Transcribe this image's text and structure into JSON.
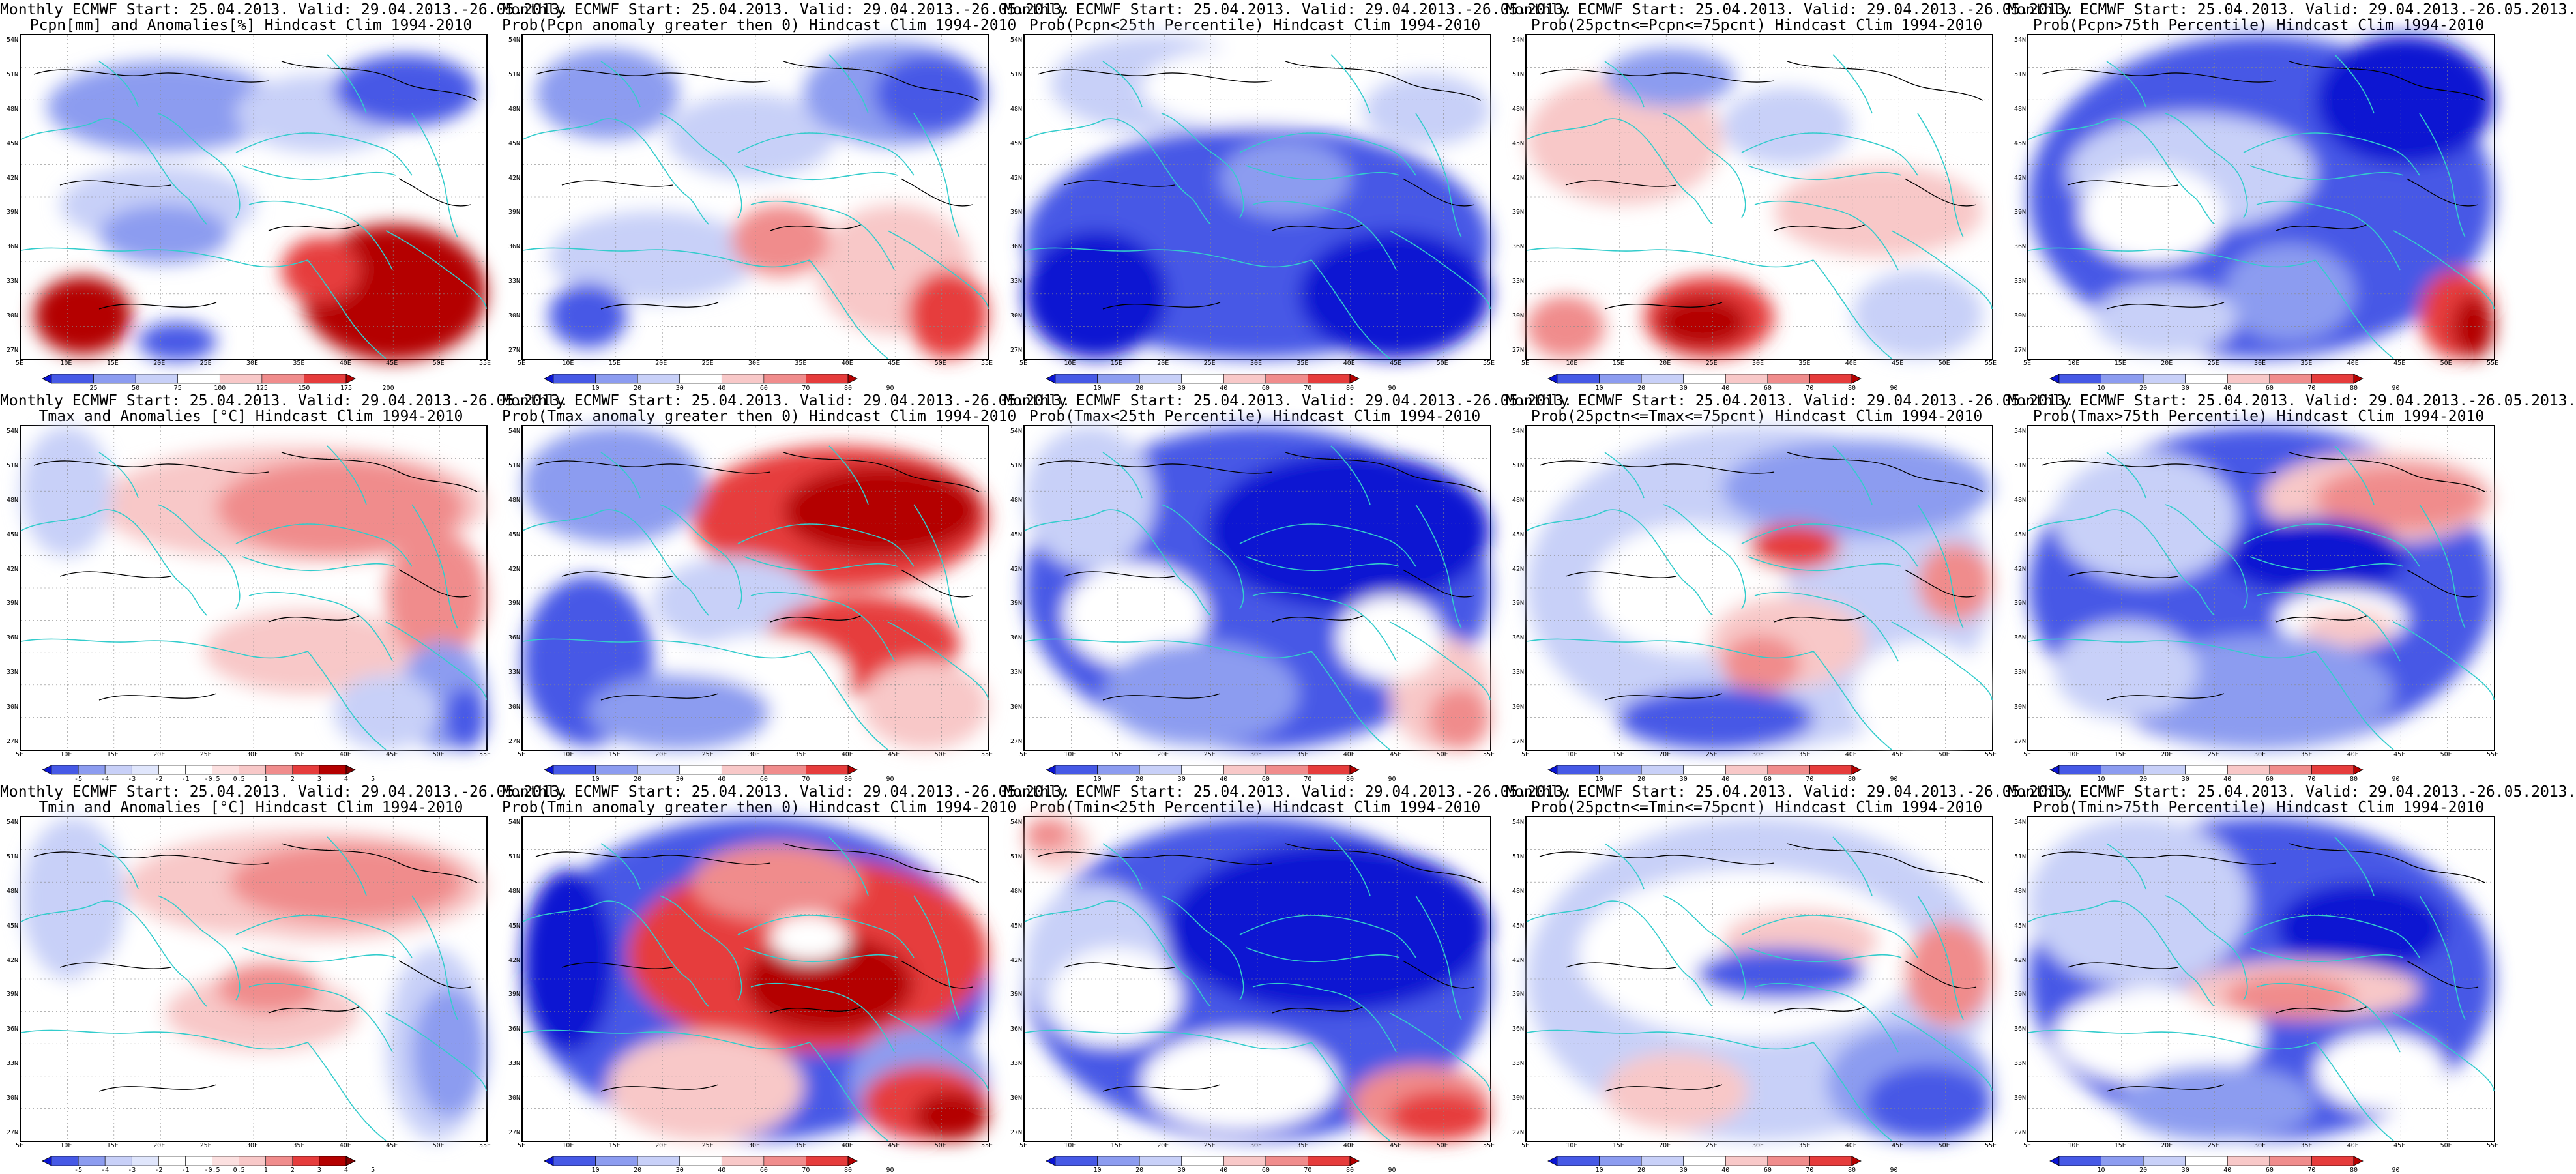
{
  "axes": {
    "lat_labels": [
      "54N",
      "51N",
      "48N",
      "45N",
      "42N",
      "39N",
      "36N",
      "33N",
      "30N",
      "27N"
    ],
    "lon_labels": [
      "5E",
      "10E",
      "15E",
      "20E",
      "25E",
      "30E",
      "35E",
      "40E",
      "45E",
      "50E",
      "55E"
    ]
  },
  "colors": {
    "deep_blue": "#0a14d2",
    "blue": "#4659e6",
    "mid_blue": "#8c9cf0",
    "light_blue": "#c8d0f8",
    "white": "#ffffff",
    "light_red": "#f8c8c8",
    "mid_red": "#f08c8c",
    "red": "#e63c3c",
    "dark_red": "#b40000",
    "coast": "#33cccc",
    "contour": "#000000"
  },
  "panels": [
    {
      "id": "p1",
      "title1": "Monthly ECMWF Start: 25.04.2013. Valid: 29.04.2013.-26.05.2013.",
      "title2": "Pcpn[mm] and Anomalies[%] Hindcast Clim 1994-2010",
      "pattern": "pcpn_anom",
      "cbar_labels": [
        "25",
        "50",
        "75",
        "100",
        "125",
        "150",
        "175",
        "200"
      ],
      "cbar_scheme": "anom8"
    },
    {
      "id": "p2",
      "title1": "Monthly ECMWF Start: 25.04.2013. Valid: 29.04.2013.-26.05.2013.",
      "title2": "Prob(Pcpn anomaly greater then 0) Hindcast Clim 1994-2010",
      "pattern": "pcpn_prob",
      "cbar_labels": [
        "10",
        "20",
        "30",
        "40",
        "60",
        "70",
        "80",
        "90"
      ],
      "cbar_scheme": "prob"
    },
    {
      "id": "p3",
      "title1": "Monthly ECMWF Start: 25.04.2013. Valid: 29.04.2013.-26.05.2013.",
      "title2": "Prob(Pcpn<25th Percentile) Hindcast Clim 1994-2010",
      "pattern": "pcpn_low",
      "cbar_labels": [
        "10",
        "20",
        "30",
        "40",
        "60",
        "70",
        "80",
        "90"
      ],
      "cbar_scheme": "prob"
    },
    {
      "id": "p4",
      "title1": "Monthly ECMWF Start: 25.04.2013. Valid: 29.04.2013.-26.05.2013.",
      "title2": "Prob(25pctn<=Pcpn<=75pcnt) Hindcast Clim 1994-2010",
      "pattern": "pcpn_mid",
      "cbar_labels": [
        "10",
        "20",
        "30",
        "40",
        "60",
        "70",
        "80",
        "90"
      ],
      "cbar_scheme": "prob"
    },
    {
      "id": "p5",
      "title1": "Monthly ECMWF Start: 25.04.2013. Valid: 29.04.2013.-26.05.2013.",
      "title2": "Prob(Pcpn>75th Percentile) Hindcast Clim 1994-2010",
      "pattern": "pcpn_high",
      "cbar_labels": [
        "10",
        "20",
        "30",
        "40",
        "60",
        "70",
        "80",
        "90"
      ],
      "cbar_scheme": "prob"
    },
    {
      "id": "p6",
      "title1": "Monthly ECMWF Start: 25.04.2013. Valid: 29.04.2013.-26.05.2013.",
      "title2": "Tmax and Anomalies [°C] Hindcast Clim 1994-2010",
      "pattern": "tmax_anom",
      "cbar_labels": [
        "-5",
        "-4",
        "-3",
        "-2",
        "-1",
        "-0.5",
        "0.5",
        "1",
        "2",
        "3",
        "4",
        "5"
      ],
      "cbar_scheme": "anom12"
    },
    {
      "id": "p7",
      "title1": "Monthly ECMWF Start: 25.04.2013. Valid: 29.04.2013.-26.05.2013.",
      "title2": "Prob(Tmax anomaly greater then 0) Hindcast Clim 1994-2010",
      "pattern": "tmax_prob",
      "cbar_labels": [
        "10",
        "20",
        "30",
        "40",
        "60",
        "70",
        "80",
        "90"
      ],
      "cbar_scheme": "prob"
    },
    {
      "id": "p8",
      "title1": "Monthly ECMWF Start: 25.04.2013. Valid: 29.04.2013.-26.05.2013.",
      "title2": "Prob(Tmax<25th Percentile) Hindcast Clim 1994-2010",
      "pattern": "tmax_low",
      "cbar_labels": [
        "10",
        "20",
        "30",
        "40",
        "60",
        "70",
        "80",
        "90"
      ],
      "cbar_scheme": "prob"
    },
    {
      "id": "p9",
      "title1": "Monthly ECMWF Start: 25.04.2013. Valid: 29.04.2013.-26.05.2013.",
      "title2": "Prob(25pctn<=Tmax<=75pcnt) Hindcast Clim 1994-2010",
      "pattern": "tmax_mid",
      "cbar_labels": [
        "10",
        "20",
        "30",
        "40",
        "60",
        "70",
        "80",
        "90"
      ],
      "cbar_scheme": "prob"
    },
    {
      "id": "p10",
      "title1": "Monthly ECMWF Start: 25.04.2013. Valid: 29.04.2013.-26.05.2013.",
      "title2": "Prob(Tmax>75th Percentile) Hindcast Clim 1994-2010",
      "pattern": "tmax_high",
      "cbar_labels": [
        "10",
        "20",
        "30",
        "40",
        "60",
        "70",
        "80",
        "90"
      ],
      "cbar_scheme": "prob"
    },
    {
      "id": "p11",
      "title1": "Monthly ECMWF Start: 25.04.2013. Valid: 29.04.2013.-26.05.2013.",
      "title2": "Tmin and Anomalies [°C] Hindcast Clim 1994-2010",
      "pattern": "tmin_anom",
      "cbar_labels": [
        "-5",
        "-4",
        "-3",
        "-2",
        "-1",
        "-0.5",
        "0.5",
        "1",
        "2",
        "3",
        "4",
        "5"
      ],
      "cbar_scheme": "anom12"
    },
    {
      "id": "p12",
      "title1": "Monthly ECMWF Start: 25.04.2013. Valid: 29.04.2013.-26.05.2013.",
      "title2": "Prob(Tmin anomaly greater then 0) Hindcast Clim 1994-2010",
      "pattern": "tmin_prob",
      "cbar_labels": [
        "10",
        "20",
        "30",
        "40",
        "60",
        "70",
        "80",
        "90"
      ],
      "cbar_scheme": "prob"
    },
    {
      "id": "p13",
      "title1": "Monthly ECMWF Start: 25.04.2013. Valid: 29.04.2013.-26.05.2013.",
      "title2": "Prob(Tmin<25th Percentile) Hindcast Clim 1994-2010",
      "pattern": "tmin_low",
      "cbar_labels": [
        "10",
        "20",
        "30",
        "40",
        "60",
        "70",
        "80",
        "90"
      ],
      "cbar_scheme": "prob"
    },
    {
      "id": "p14",
      "title1": "Monthly ECMWF Start: 25.04.2013. Valid: 29.04.2013.-26.05.2013.",
      "title2": "Prob(25pctn<=Tmin<=75pcnt) Hindcast Clim 1994-2010",
      "pattern": "tmin_mid",
      "cbar_labels": [
        "10",
        "20",
        "30",
        "40",
        "60",
        "70",
        "80",
        "90"
      ],
      "cbar_scheme": "prob"
    },
    {
      "id": "p15",
      "title1": "Monthly ECMWF Start: 25.04.2013. Valid: 29.04.2013.-26.05.2013.",
      "title2": "Prob(Tmin>75th Percentile) Hindcast Clim 1994-2010",
      "pattern": "tmin_high",
      "cbar_labels": [
        "10",
        "20",
        "30",
        "40",
        "60",
        "70",
        "80",
        "90"
      ],
      "cbar_scheme": "prob"
    }
  ]
}
